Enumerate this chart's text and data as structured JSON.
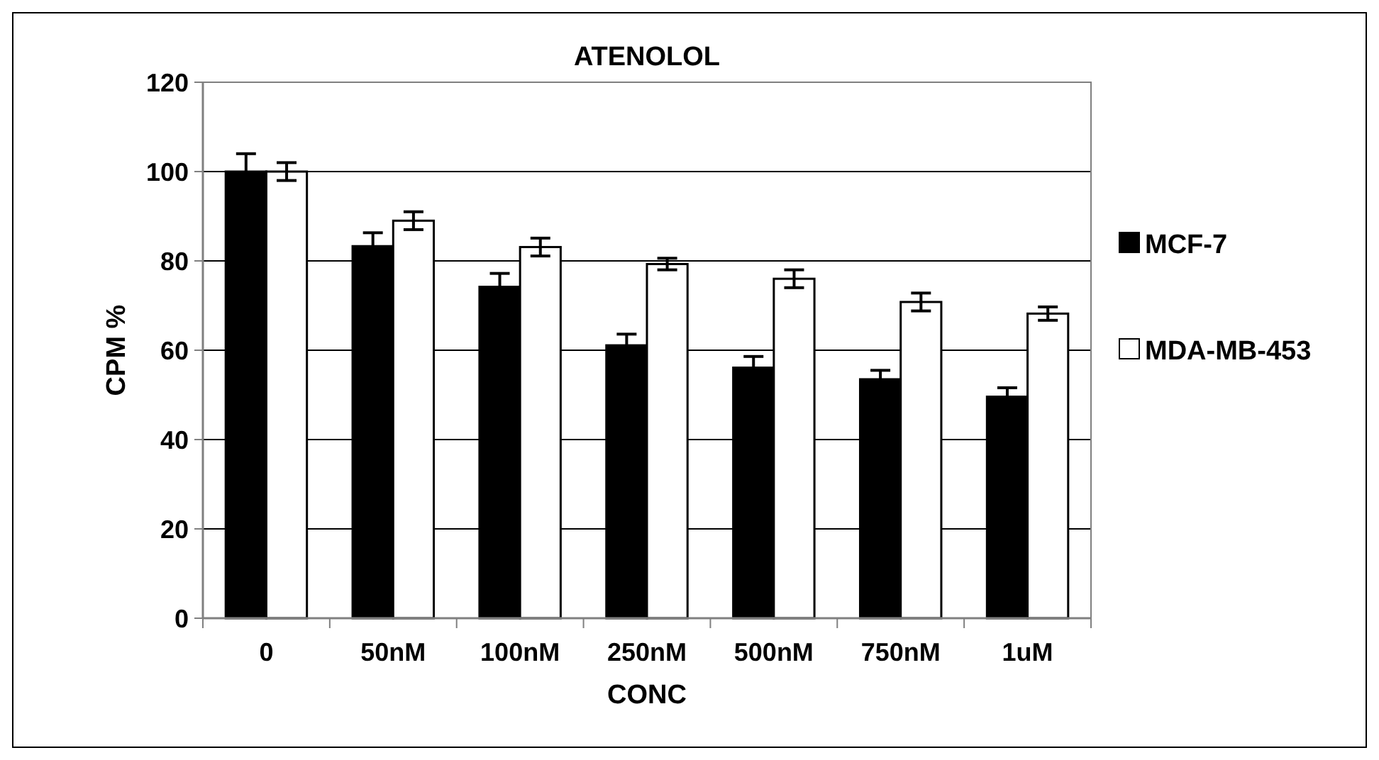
{
  "chart_data": {
    "type": "bar",
    "title": "ATENOLOL",
    "xlabel": "CONC",
    "ylabel": "CPM %",
    "categories": [
      "0",
      "50nM",
      "100nM",
      "250nM",
      "500nM",
      "750nM",
      "1uM"
    ],
    "series": [
      {
        "name": "MCF-7",
        "color": "#000000",
        "values": [
          100,
          83.3,
          74.2,
          61.1,
          56.1,
          53.5,
          49.6
        ],
        "errors": [
          4,
          3,
          3,
          2.5,
          2.5,
          2,
          2
        ]
      },
      {
        "name": "MDA-MB-453",
        "color": "#ffffff",
        "values": [
          100,
          89,
          83.1,
          79.3,
          76,
          70.8,
          68.2
        ],
        "errors": [
          2,
          2,
          2,
          1.3,
          2,
          2,
          1.5
        ]
      }
    ],
    "ylim": [
      0,
      120
    ],
    "yticks": [
      0,
      20,
      40,
      60,
      80,
      100,
      120
    ],
    "grid": "y",
    "legend": "right"
  }
}
